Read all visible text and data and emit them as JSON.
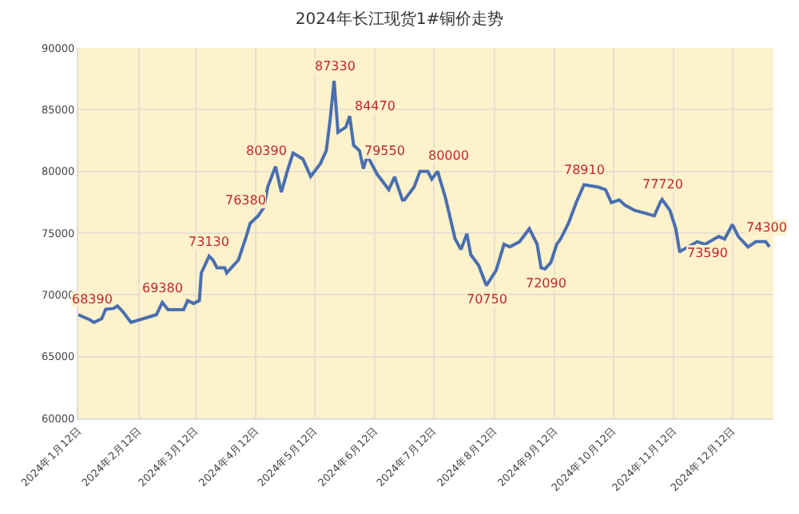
{
  "chart_data": {
    "type": "line",
    "title": "2024年长江现货1#铜价走势",
    "x": [
      "2024-01-12",
      "2024-01-18",
      "2024-01-20",
      "2024-01-24",
      "2024-01-26",
      "2024-01-30",
      "2024-02-01",
      "2024-02-04",
      "2024-02-08",
      "2024-02-21",
      "2024-02-24",
      "2024-02-27",
      "2024-03-06",
      "2024-03-08",
      "2024-03-11",
      "2024-03-14",
      "2024-03-15",
      "2024-03-19",
      "2024-03-21",
      "2024-03-23",
      "2024-03-27",
      "2024-03-28",
      "2024-04-03",
      "2024-04-07",
      "2024-04-09",
      "2024-04-13",
      "2024-04-16",
      "2024-04-18",
      "2024-04-22",
      "2024-04-25",
      "2024-04-28",
      "2024-05-01",
      "2024-05-06",
      "2024-05-10",
      "2024-05-15",
      "2024-05-18",
      "2024-05-20",
      "2024-05-22",
      "2024-05-24",
      "2024-05-28",
      "2024-05-30",
      "2024-06-01",
      "2024-06-04",
      "2024-06-06",
      "2024-06-08",
      "2024-06-13",
      "2024-06-19",
      "2024-06-22",
      "2024-06-26",
      "2024-06-27",
      "2024-07-02",
      "2024-07-05",
      "2024-07-09",
      "2024-07-11",
      "2024-07-14",
      "2024-07-18",
      "2024-07-23",
      "2024-07-26",
      "2024-07-29",
      "2024-07-31",
      "2024-08-04",
      "2024-08-08",
      "2024-08-13",
      "2024-08-17",
      "2024-08-20",
      "2024-08-25",
      "2024-08-30",
      "2024-09-03",
      "2024-09-05",
      "2024-09-07",
      "2024-09-10",
      "2024-09-13",
      "2024-09-15",
      "2024-09-19",
      "2024-09-23",
      "2024-09-27",
      "2024-10-04",
      "2024-10-08",
      "2024-10-11",
      "2024-10-15",
      "2024-10-18",
      "2024-10-23",
      "2024-10-28",
      "2024-11-02",
      "2024-11-05",
      "2024-11-06",
      "2024-11-10",
      "2024-11-13",
      "2024-11-15",
      "2024-11-16",
      "2024-11-24",
      "2024-11-28",
      "2024-12-05",
      "2024-12-08",
      "2024-12-12",
      "2024-12-15",
      "2024-12-20",
      "2024-12-24",
      "2024-12-29",
      "2024-12-31"
    ],
    "series": [
      {
        "color": "#4a6fb0",
        "values": [
          68390,
          67970,
          67760,
          68060,
          68820,
          68900,
          69100,
          68600,
          67760,
          68390,
          69380,
          68800,
          68800,
          69530,
          69300,
          69530,
          71770,
          73130,
          72800,
          72190,
          72190,
          71770,
          72820,
          74720,
          75780,
          76380,
          77050,
          78730,
          80390,
          78310,
          80000,
          81480,
          81000,
          79580,
          80630,
          81680,
          84220,
          87330,
          83160,
          83580,
          84470,
          82110,
          81680,
          80210,
          81260,
          79780,
          78520,
          79550,
          77680,
          77680,
          78730,
          80000,
          80000,
          79370,
          80000,
          77880,
          74520,
          73670,
          74940,
          73250,
          72400,
          70750,
          71980,
          74090,
          73880,
          74300,
          75350,
          74090,
          72190,
          72090,
          72610,
          74090,
          74520,
          75780,
          77470,
          78910,
          78730,
          78520,
          77470,
          77680,
          77260,
          76830,
          76620,
          76400,
          77470,
          77720,
          76830,
          75350,
          73460,
          73590,
          74300,
          74090,
          74720,
          74520,
          75690,
          74720,
          73880,
          74300,
          74300,
          73880
        ]
      }
    ],
    "xlim": [
      "2024-01-12",
      "2025-01-02"
    ],
    "xticks": [
      {
        "value": "2024-01-12",
        "label": "2024年1月12日"
      },
      {
        "value": "2024-02-12",
        "label": "2024年2月12日"
      },
      {
        "value": "2024-03-12",
        "label": "2024年3月12日"
      },
      {
        "value": "2024-04-12",
        "label": "2024年4月12日"
      },
      {
        "value": "2024-05-12",
        "label": "2024年5月12日"
      },
      {
        "value": "2024-06-12",
        "label": "2024年6月12日"
      },
      {
        "value": "2024-07-12",
        "label": "2024年7月12日"
      },
      {
        "value": "2024-08-12",
        "label": "2024年8月12日"
      },
      {
        "value": "2024-09-12",
        "label": "2024年9月12日"
      },
      {
        "value": "2024-10-12",
        "label": "2024年10月12日"
      },
      {
        "value": "2024-11-12",
        "label": "2024年11月12日"
      },
      {
        "value": "2024-12-12",
        "label": "2024年12月12日"
      }
    ],
    "ylim": [
      60000,
      90000
    ],
    "yticks": [
      60000,
      65000,
      70000,
      75000,
      80000,
      85000,
      90000
    ],
    "grid": true,
    "marker": "none",
    "line_style": "solid",
    "annotations": [
      {
        "text": "68390",
        "x": "2024-01-12",
        "y": 68390
      },
      {
        "text": "69380",
        "x": "2024-02-24",
        "y": 69380
      },
      {
        "text": "73130",
        "x": "2024-03-19",
        "y": 73130
      },
      {
        "text": "76380",
        "x": "2024-04-13",
        "y": 76380
      },
      {
        "text": "80390",
        "x": "2024-04-22",
        "y": 80390
      },
      {
        "text": "87330",
        "x": "2024-05-22",
        "y": 87330
      },
      {
        "text": "84470",
        "x": "2024-05-30",
        "y": 84470
      },
      {
        "text": "79550",
        "x": "2024-06-22",
        "y": 79550
      },
      {
        "text": "80000",
        "x": "2024-07-05",
        "y": 80000
      },
      {
        "text": "70750",
        "x": "2024-08-08",
        "y": 70750
      },
      {
        "text": "72090",
        "x": "2024-09-07",
        "y": 72090
      },
      {
        "text": "78910",
        "x": "2024-09-27",
        "y": 78910
      },
      {
        "text": "77720",
        "x": "2024-11-06",
        "y": 77720
      },
      {
        "text": "73590",
        "x": "2024-11-16",
        "y": 73590
      },
      {
        "text": "74300",
        "x": "2024-12-29",
        "y": 74300
      }
    ]
  }
}
